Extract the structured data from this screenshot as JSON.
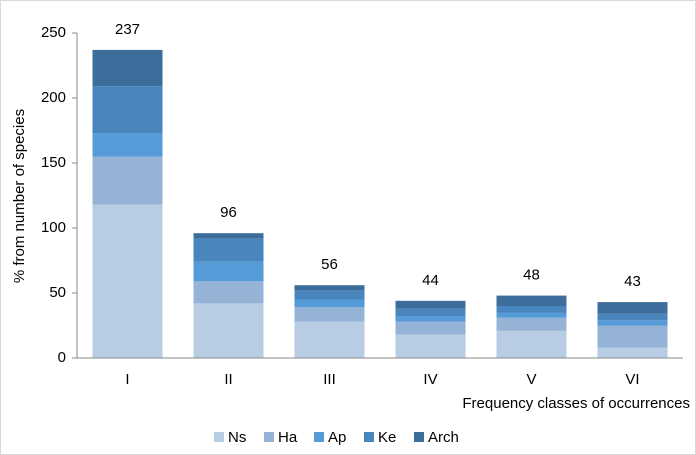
{
  "chart_data": {
    "type": "stacked_bar",
    "y_label": "% from number of species",
    "x_label": "Frequency classes of occurrences",
    "categories": [
      "I",
      "II",
      "III",
      "IV",
      "V",
      "VI"
    ],
    "series": [
      {
        "name": "Ns",
        "color": "#b8cce4",
        "values": [
          118,
          42,
          28,
          18,
          21,
          8
        ]
      },
      {
        "name": "Ha",
        "color": "#95b3d7",
        "values": [
          37,
          17,
          11,
          10,
          10,
          17
        ]
      },
      {
        "name": "Ap",
        "color": "#559bd8",
        "values": [
          18,
          15,
          6,
          4,
          4,
          4
        ]
      },
      {
        "name": "Ke",
        "color": "#4a86be",
        "values": [
          36,
          18,
          7,
          6,
          5,
          5
        ]
      },
      {
        "name": "Arch",
        "color": "#3d6d9b",
        "values": [
          28,
          4,
          4,
          6,
          8,
          9
        ]
      }
    ],
    "totals": [
      237,
      96,
      56,
      44,
      48,
      43
    ],
    "ylim": [
      0,
      250
    ],
    "yticks": [
      0,
      50,
      100,
      150,
      200,
      250
    ],
    "legend": "bottom"
  }
}
